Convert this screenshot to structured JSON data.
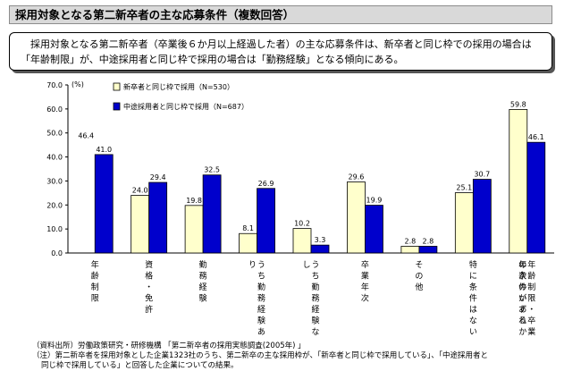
{
  "title": "採用対象となる第二新卒者の主な応募条件（複数回答）",
  "summary": "採用対象となる第二新卒者（卒業後６か月以上経過した者）の主な応募条件は、新卒者と同じ枠での採用の場合は「年齢制限」が、中途採用者と同じ枠で採用の場合は「勤務経験」となる傾向にある。",
  "chart_data": {
    "type": "bar",
    "unit": "(%)",
    "ylim": [
      0,
      70
    ],
    "yticks": [
      "70.0",
      "60.0",
      "50.0",
      "40.0",
      "30.0",
      "20.0",
      "10.0",
      "0.0"
    ],
    "categories": [
      "年齢制限",
      "資格・免許",
      "勤務経験",
      "うち勤務経験あり",
      "うち勤務経験なし",
      "卒業年次",
      "その他",
      "特に条件はない",
      "年齢制限・卒業年次のいずれかの条件がある"
    ],
    "series": [
      {
        "name": "新卒者と同じ枠で採用（N=530）",
        "color": "#ffffcc",
        "values": [
          46.4,
          24.0,
          19.8,
          8.1,
          10.2,
          29.6,
          2.8,
          25.1,
          59.8
        ],
        "labels": [
          "46.4",
          "24.0",
          "19.8",
          "8.1",
          "10.2",
          "29.6",
          "2.8",
          "25.1",
          "59.8"
        ]
      },
      {
        "name": "中途採用者と同じ枠で採用（N=687）",
        "color": "#0000cc",
        "values": [
          null,
          29.4,
          32.5,
          26.9,
          3.3,
          19.9,
          2.8,
          30.7,
          46.1
        ],
        "labels": [
          "41.0",
          "29.4",
          "32.5",
          "26.9",
          "3.3",
          "19.9",
          "2.8",
          "30.7",
          "46.1"
        ]
      }
    ],
    "first_category_series2_value": 41.0
  },
  "notes": [
    "（資料出所）労働政策研究・研修機構 「第二新卒者の採用実態調査(2005年) 」",
    "（注）第二新卒者を採用対象とした企業1323社のうち、第二新卒の主な採用枠が、「新卒者と同じ枠で採用している」、「中途採用者と",
    "同じ枠で採用している」と回答した企業についての結果。"
  ]
}
